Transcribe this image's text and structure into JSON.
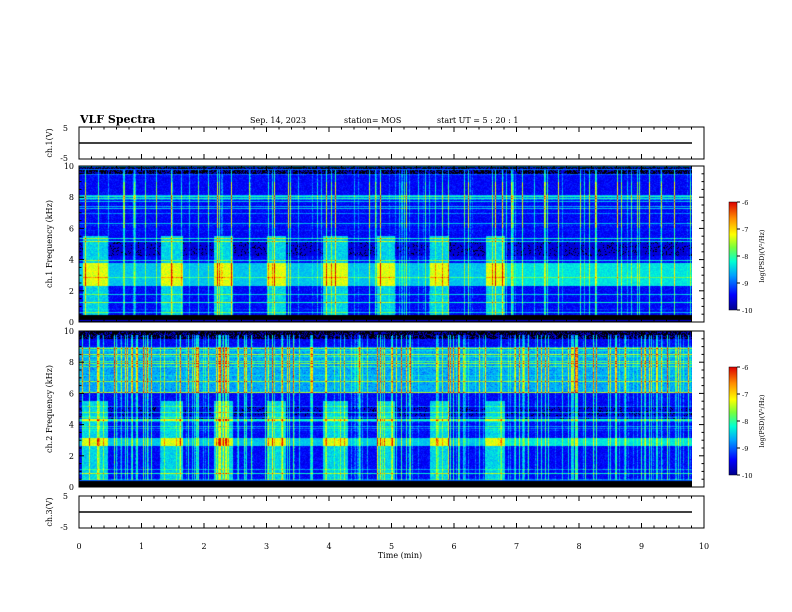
{
  "header": {
    "title": "VLF Spectra",
    "date": "Sep. 14, 2023",
    "station": "station= MOS",
    "start": "start UT =  5 : 20 : 1"
  },
  "colors": {
    "colormap": [
      "#00008c",
      "#0000ff",
      "#00a0ff",
      "#00ffd2",
      "#78ff3c",
      "#ffff00",
      "#ff8c00",
      "#dc0000"
    ],
    "background": "#000000",
    "trace": "#000000"
  },
  "chart_data": [
    {
      "type": "line",
      "panel": "ch1-voltage",
      "ylabel": "ch.1(V)",
      "ylim": [
        -5,
        5
      ],
      "yticks": [
        "5",
        "-5"
      ],
      "series": [
        {
          "x": [
            0,
            9.8
          ],
          "values": [
            0,
            0
          ]
        }
      ]
    },
    {
      "type": "heatmap",
      "panel": "ch1-spectrogram",
      "ylabel": "ch.1 Frequency (kHz)",
      "ylim": [
        0,
        10
      ],
      "yticks": [
        "0",
        "2",
        "4",
        "6",
        "8",
        "10"
      ],
      "xlim": [
        0,
        10
      ],
      "data_extent_min": 9.8,
      "broadband_bursts_min": [
        [
          0.05,
          0.45
        ],
        [
          1.3,
          1.65
        ],
        [
          2.15,
          2.45
        ],
        [
          3.0,
          3.3
        ],
        [
          3.9,
          4.3
        ],
        [
          4.75,
          5.05
        ],
        [
          5.6,
          5.9
        ],
        [
          6.5,
          6.8
        ]
      ],
      "hiss_band_khz": [
        2.3,
        3.8
      ],
      "colorbar": {
        "label": "log(PSD)(V²/Hz)",
        "ticks": [
          "-6",
          "-7",
          "-8",
          "-9",
          "-10"
        ],
        "range": [
          -10,
          -6
        ]
      }
    },
    {
      "type": "heatmap",
      "panel": "ch2-spectrogram",
      "ylabel": "ch.2 Frequency (kHz)",
      "ylim": [
        0,
        10
      ],
      "yticks": [
        "0",
        "2",
        "4",
        "6",
        "8",
        "10"
      ],
      "xlim": [
        0,
        10
      ],
      "data_extent_min": 9.8,
      "broadband_bursts_min": [
        [
          0.05,
          0.45
        ],
        [
          1.3,
          1.65
        ],
        [
          2.15,
          2.45
        ],
        [
          3.0,
          3.3
        ],
        [
          3.9,
          4.3
        ],
        [
          4.75,
          5.05
        ],
        [
          5.6,
          5.9
        ],
        [
          6.5,
          6.8
        ]
      ],
      "hiss_band_khz": [
        2.6,
        3.1
      ],
      "colorbar": {
        "label": "log(PSD)(V²/Hz)",
        "ticks": [
          "-6",
          "-7",
          "-8",
          "-9",
          "-10"
        ],
        "range": [
          -10,
          -6
        ]
      }
    },
    {
      "type": "line",
      "panel": "ch3-voltage",
      "ylabel": "ch.3(V)",
      "ylim": [
        -5,
        5
      ],
      "yticks": [
        "5",
        "-5"
      ],
      "series": [
        {
          "x": [
            0,
            9.8
          ],
          "values": [
            0,
            0
          ]
        }
      ]
    }
  ],
  "xaxis": {
    "label": "Time (min)",
    "xlim": [
      0,
      10
    ],
    "ticks": [
      "0",
      "1",
      "2",
      "3",
      "4",
      "5",
      "6",
      "7",
      "8",
      "9",
      "10"
    ]
  }
}
